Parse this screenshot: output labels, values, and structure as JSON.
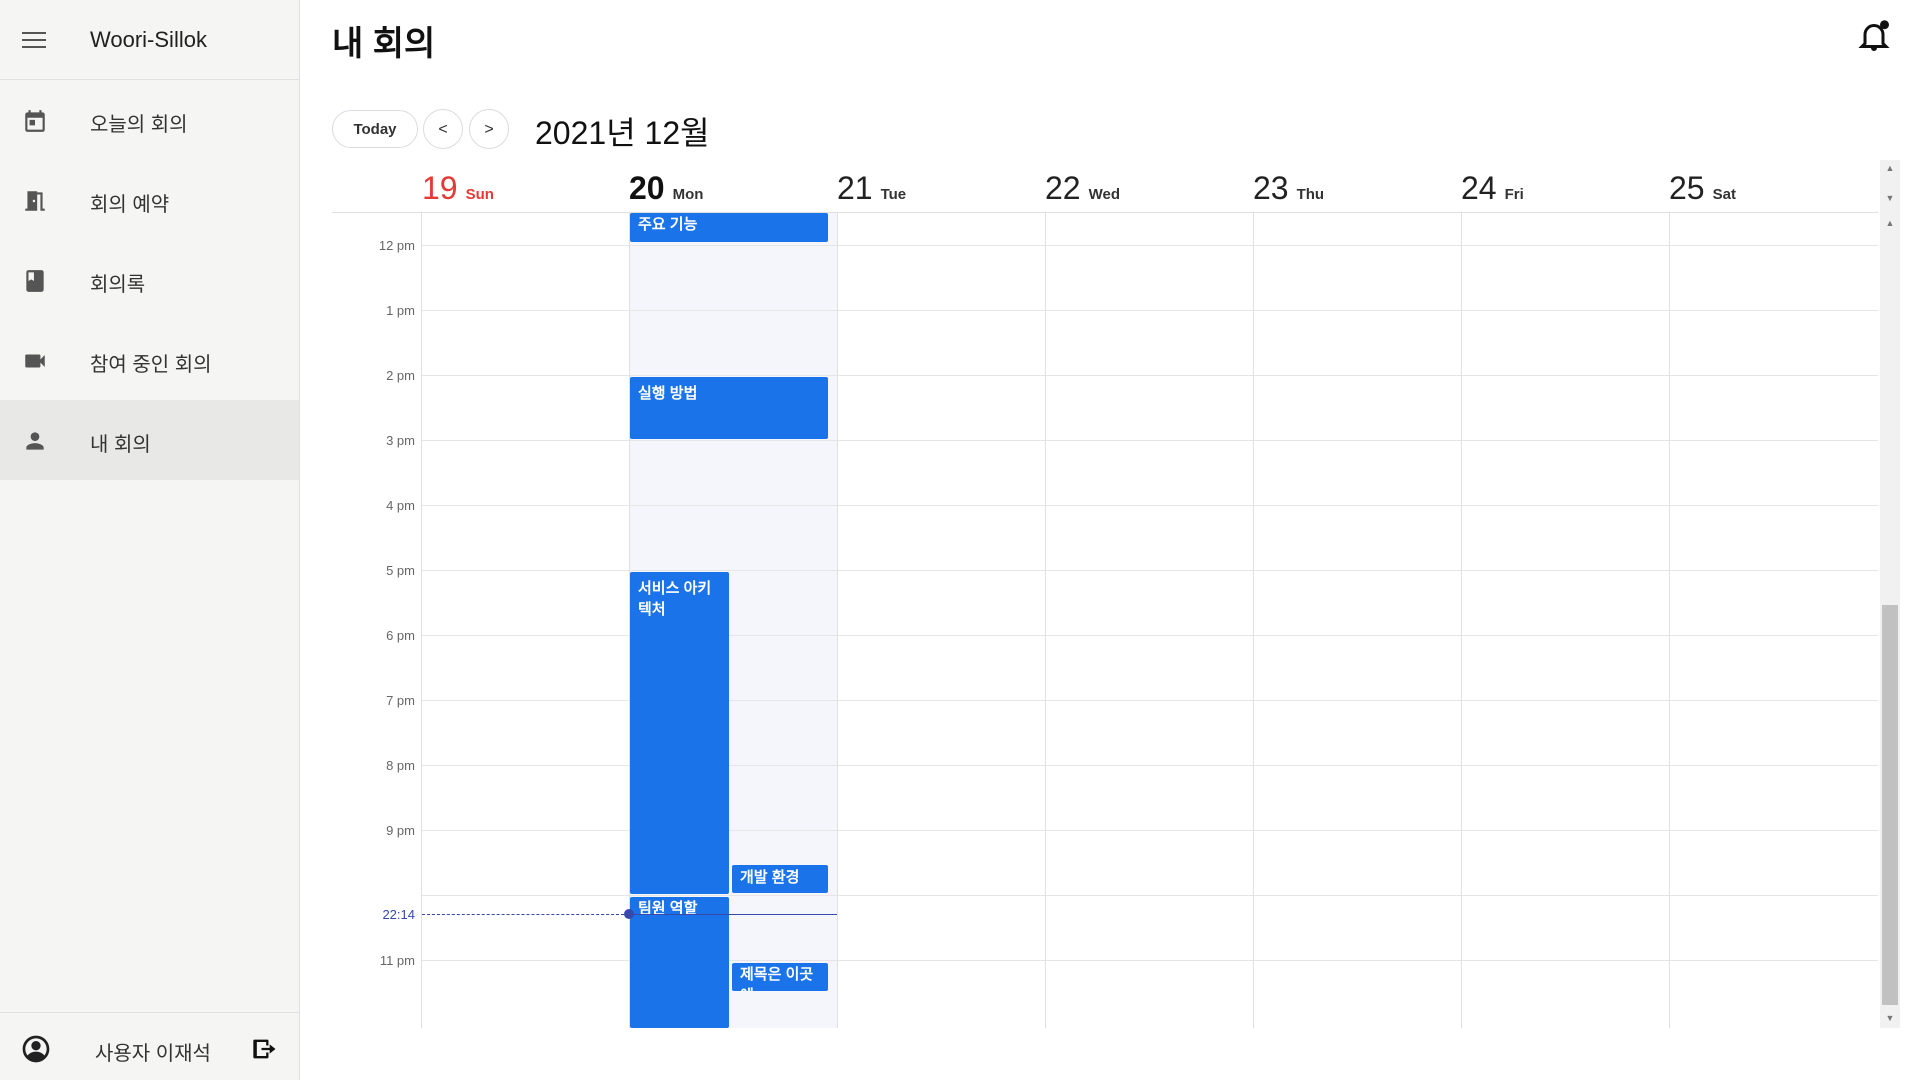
{
  "sidebar": {
    "app_title": "Woori-Sillok",
    "items": [
      {
        "label": "오늘의 회의",
        "icon": "calendar-icon"
      },
      {
        "label": "회의 예약",
        "icon": "door-icon"
      },
      {
        "label": "회의록",
        "icon": "book-icon"
      },
      {
        "label": "참여 중인 회의",
        "icon": "video-call-icon"
      },
      {
        "label": "내 회의",
        "icon": "person-icon",
        "active": true
      }
    ],
    "user_name": "사용자 이재석"
  },
  "header": {
    "title": "내 회의"
  },
  "toolbar": {
    "today_label": "Today",
    "prev_label": "<",
    "next_label": ">",
    "month_title": "2021년 12월"
  },
  "calendar": {
    "days": [
      {
        "num": "19",
        "name": "Sun"
      },
      {
        "num": "20",
        "name": "Mon",
        "today": true
      },
      {
        "num": "21",
        "name": "Tue"
      },
      {
        "num": "22",
        "name": "Wed"
      },
      {
        "num": "23",
        "name": "Thu"
      },
      {
        "num": "24",
        "name": "Fri"
      },
      {
        "num": "25",
        "name": "Sat"
      }
    ],
    "time_labels": [
      "12 pm",
      "1 pm",
      "2 pm",
      "3 pm",
      "4 pm",
      "5 pm",
      "6 pm",
      "7 pm",
      "8 pm",
      "9 pm",
      "11 pm"
    ],
    "current_time": "22:14",
    "events": [
      {
        "title": "주요 기능",
        "day": "20"
      },
      {
        "title": "실행 방법",
        "day": "20"
      },
      {
        "title": "서비스 아키텍처",
        "day": "20"
      },
      {
        "title": "개발 환경",
        "day": "20"
      },
      {
        "title": "팀원 역할",
        "day": "20"
      },
      {
        "title": "제목은 이곳에",
        "day": "20"
      }
    ]
  },
  "colors": {
    "event": "#1a73e8",
    "sunday": "#e53935",
    "now_indicator": "#3949ab"
  }
}
